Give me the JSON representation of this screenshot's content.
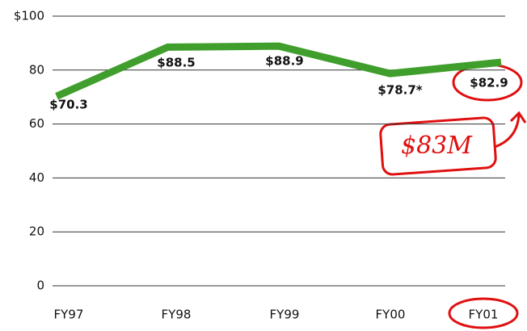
{
  "chart_data": {
    "type": "line",
    "categories": [
      "FY97",
      "FY98",
      "FY99",
      "FY00",
      "FY01"
    ],
    "series": [
      {
        "color": "#3f9e2c",
        "values": [
          70.3,
          88.5,
          88.9,
          78.7,
          82.9
        ],
        "value_labels": [
          "$70.3",
          "$88.5",
          "$88.9",
          "$78.7*",
          "$82.9"
        ]
      }
    ],
    "ylim": [
      0,
      100
    ],
    "yticks": [
      0,
      20,
      40,
      60,
      80,
      {
        "value": 100,
        "label": "$100"
      }
    ],
    "grid": true,
    "annotation": "$83M"
  }
}
